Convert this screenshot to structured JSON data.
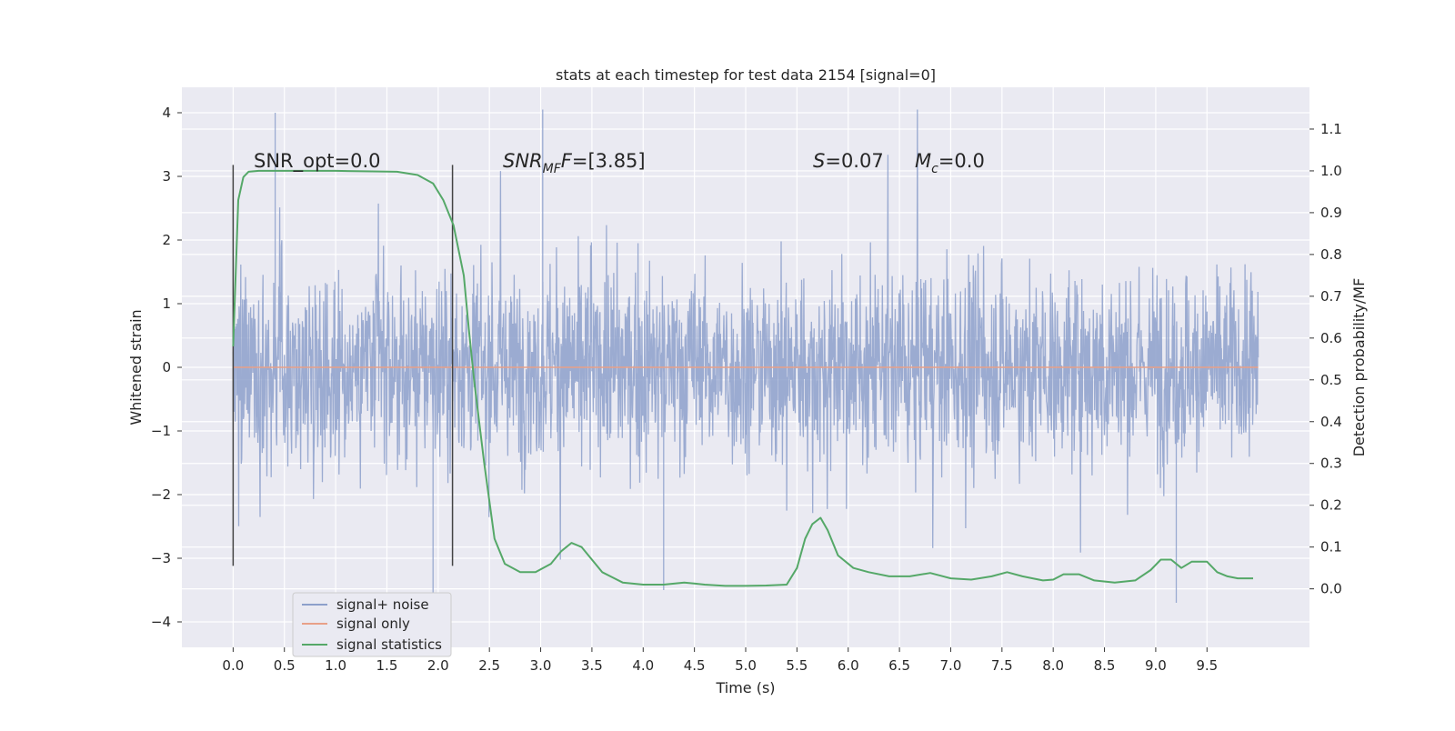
{
  "chart_data": {
    "type": "line",
    "title": "stats at each timestep for test data 2154 [signal=0]",
    "xlabel": "Time (s)",
    "ylabel": "Whitened strain",
    "ylabel_right": "Detection probability/MF",
    "xlim": [
      -0.5,
      10.5
    ],
    "ylim": [
      -4.4,
      4.4
    ],
    "ylim_right": [
      -0.14,
      1.2
    ],
    "x_ticks": [
      "0.0",
      "0.5",
      "1.0",
      "1.5",
      "2.0",
      "2.5",
      "3.0",
      "3.5",
      "4.0",
      "4.5",
      "5.0",
      "5.5",
      "6.0",
      "6.5",
      "7.0",
      "7.5",
      "8.0",
      "8.5",
      "9.0",
      "9.5"
    ],
    "y_ticks": [
      "4",
      "3",
      "2",
      "1",
      "0",
      "−1",
      "−2",
      "−3",
      "−4"
    ],
    "y_ticks_right": [
      "1.1",
      "1.0",
      "0.9",
      "0.8",
      "0.7",
      "0.6",
      "0.5",
      "0.4",
      "0.3",
      "0.2",
      "0.1",
      "0.0"
    ],
    "grid": true,
    "legend_placement": "lower-left",
    "annotations": {
      "snr_opt": "SNR_opt=0.0",
      "snr_mf_sym": "SNR",
      "snr_mf_sub": "MF",
      "snr_mf_val": "=[3.85]",
      "s_sym": "S",
      "s_val": "=0.07",
      "mc_sym": "M",
      "mc_sub": "c",
      "mc_val": "=0.0"
    },
    "vertical_markers": [
      0.0,
      2.14
    ],
    "series": [
      {
        "name": "signal+ noise",
        "color": "#8da0cb",
        "x_range": [
          0.0,
          10.0
        ],
        "approx_range": [
          -3.7,
          4.05
        ],
        "note_points": [
          [
            0.41,
            4.0
          ],
          [
            3.02,
            4.05
          ],
          [
            1.95,
            -3.6
          ],
          [
            4.2,
            -3.5
          ],
          [
            9.2,
            -3.7
          ]
        ]
      },
      {
        "name": "signal only",
        "color": "#e8a088",
        "x": [
          0.0,
          10.0
        ],
        "y": [
          0.0,
          0.0
        ]
      },
      {
        "name": "signal statistics",
        "color": "#55a868",
        "axis": "right",
        "x": [
          0.0,
          0.05,
          0.1,
          0.15,
          0.25,
          0.4,
          1.0,
          1.6,
          1.8,
          1.95,
          2.05,
          2.15,
          2.25,
          2.3,
          2.35,
          2.45,
          2.55,
          2.65,
          2.8,
          2.95,
          3.1,
          3.2,
          3.3,
          3.4,
          3.5,
          3.6,
          3.8,
          4.0,
          4.2,
          4.4,
          4.6,
          4.8,
          5.0,
          5.2,
          5.4,
          5.5,
          5.58,
          5.65,
          5.73,
          5.8,
          5.9,
          6.05,
          6.2,
          6.4,
          6.6,
          6.8,
          7.0,
          7.2,
          7.4,
          7.55,
          7.7,
          7.9,
          8.0,
          8.1,
          8.25,
          8.4,
          8.6,
          8.8,
          8.95,
          9.05,
          9.15,
          9.25,
          9.35,
          9.5,
          9.6,
          9.7,
          9.8,
          9.95
        ],
        "y": [
          0.58,
          0.93,
          0.985,
          0.998,
          1.0,
          1.0,
          1.0,
          0.998,
          0.99,
          0.97,
          0.93,
          0.87,
          0.75,
          0.62,
          0.5,
          0.3,
          0.12,
          0.06,
          0.04,
          0.04,
          0.06,
          0.09,
          0.11,
          0.1,
          0.07,
          0.04,
          0.015,
          0.01,
          0.01,
          0.015,
          0.01,
          0.007,
          0.007,
          0.008,
          0.01,
          0.05,
          0.12,
          0.155,
          0.17,
          0.14,
          0.08,
          0.05,
          0.04,
          0.03,
          0.03,
          0.038,
          0.025,
          0.022,
          0.03,
          0.04,
          0.03,
          0.02,
          0.022,
          0.035,
          0.035,
          0.02,
          0.015,
          0.02,
          0.045,
          0.07,
          0.07,
          0.05,
          0.065,
          0.065,
          0.04,
          0.03,
          0.025,
          0.025
        ]
      }
    ]
  }
}
